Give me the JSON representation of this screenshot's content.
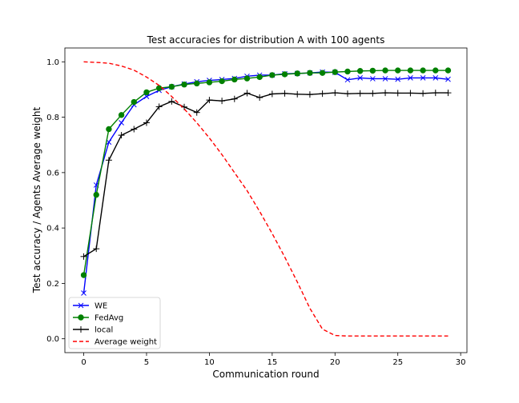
{
  "chart_data": {
    "type": "line",
    "title": "Test accuracies for distribution A with 100 agents",
    "xlabel": "Communication round",
    "ylabel": "Test accuracy / Agents Average weight",
    "xlim": [
      -1.5,
      30.5
    ],
    "ylim": [
      -0.05,
      1.05
    ],
    "xticks": [
      0,
      5,
      10,
      15,
      20,
      25,
      30
    ],
    "yticks": [
      0.0,
      0.2,
      0.4,
      0.6,
      0.8,
      1.0
    ],
    "xtick_labels": [
      "0",
      "5",
      "10",
      "15",
      "20",
      "25",
      "30"
    ],
    "ytick_labels": [
      "0.0",
      "0.2",
      "0.4",
      "0.6",
      "0.8",
      "1.0"
    ],
    "grid": false,
    "legend_position": "lower-left",
    "x": [
      0,
      1,
      2,
      3,
      4,
      5,
      6,
      7,
      8,
      9,
      10,
      11,
      12,
      13,
      14,
      15,
      16,
      17,
      18,
      19,
      20,
      21,
      22,
      23,
      24,
      25,
      26,
      27,
      28,
      29
    ],
    "series": [
      {
        "name": "WE",
        "color": "#0000ff",
        "marker": "x",
        "linestyle": "solid",
        "values": [
          0.165,
          0.555,
          0.71,
          0.78,
          0.845,
          0.875,
          0.897,
          0.91,
          0.92,
          0.928,
          0.933,
          0.936,
          0.94,
          0.948,
          0.952,
          0.952,
          0.957,
          0.958,
          0.96,
          0.963,
          0.962,
          0.935,
          0.942,
          0.939,
          0.939,
          0.937,
          0.942,
          0.942,
          0.942,
          0.937
        ]
      },
      {
        "name": "FedAvg",
        "color": "#008000",
        "marker": "o",
        "linestyle": "solid",
        "values": [
          0.23,
          0.52,
          0.757,
          0.808,
          0.855,
          0.89,
          0.905,
          0.91,
          0.918,
          0.922,
          0.926,
          0.93,
          0.936,
          0.94,
          0.945,
          0.952,
          0.955,
          0.958,
          0.96,
          0.96,
          0.963,
          0.965,
          0.967,
          0.968,
          0.969,
          0.969,
          0.969,
          0.969,
          0.969,
          0.969
        ]
      },
      {
        "name": "local",
        "color": "#000000",
        "marker": "+",
        "linestyle": "solid",
        "values": [
          0.297,
          0.325,
          0.645,
          0.735,
          0.757,
          0.78,
          0.838,
          0.857,
          0.837,
          0.817,
          0.862,
          0.859,
          0.866,
          0.887,
          0.871,
          0.884,
          0.886,
          0.883,
          0.882,
          0.885,
          0.888,
          0.885,
          0.886,
          0.886,
          0.888,
          0.887,
          0.887,
          0.886,
          0.888,
          0.888
        ]
      },
      {
        "name": "Average weight",
        "color": "#ff0000",
        "marker": "none",
        "linestyle": "dashed",
        "values": [
          1.0,
          0.998,
          0.995,
          0.985,
          0.97,
          0.945,
          0.915,
          0.875,
          0.83,
          0.78,
          0.725,
          0.665,
          0.6,
          0.535,
          0.46,
          0.38,
          0.295,
          0.205,
          0.11,
          0.035,
          0.012,
          0.01,
          0.01,
          0.01,
          0.01,
          0.01,
          0.01,
          0.01,
          0.01,
          0.01
        ]
      }
    ]
  }
}
